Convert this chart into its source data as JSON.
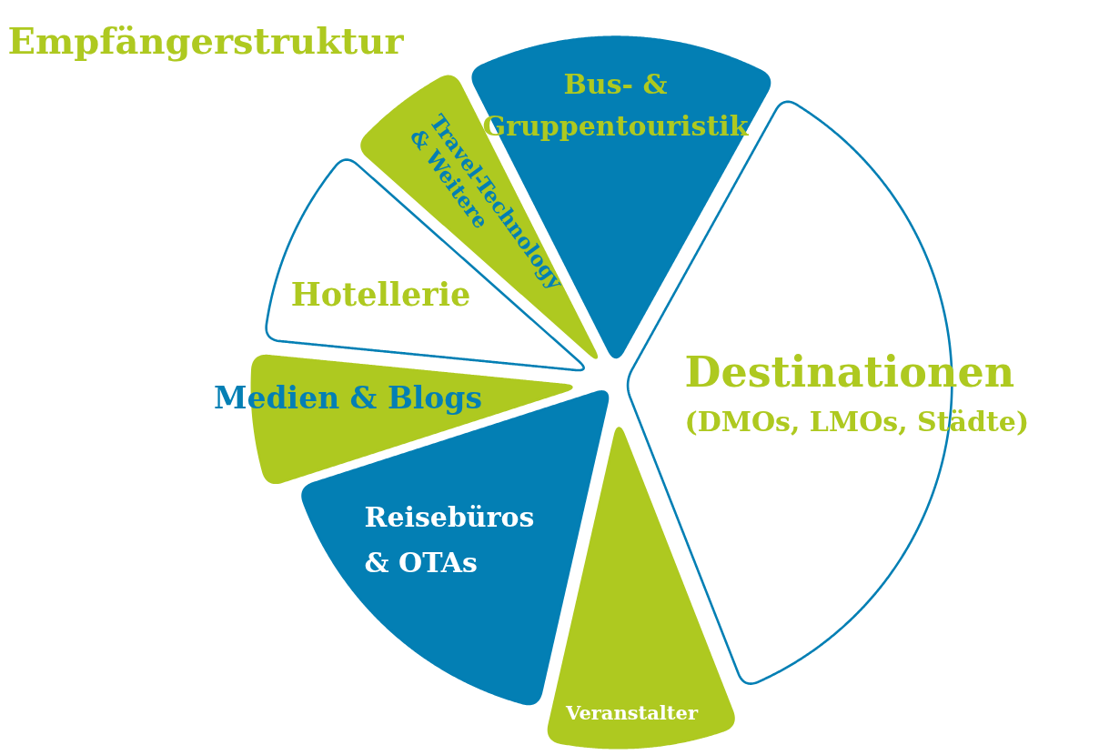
{
  "chart_data": {
    "type": "pie",
    "title": "Empfängerstruktur",
    "categories": [
      "Destinationen\n(DMOs, LMOs, Städte)",
      "Veranstalter",
      "Reisebüros\n& OTAs",
      "Medien & Blogs",
      "Hotellerie",
      "Travel-Technology\n& Weitere",
      "Bus- &\nGruppentouristik"
    ],
    "values": [
      36,
      9.5,
      16.5,
      6.5,
      10,
      6,
      15.5
    ],
    "colors": [
      "#ffffff",
      "#aec920",
      "#037fb4",
      "#aec920",
      "#ffffff",
      "#aec920",
      "#037fb4"
    ]
  }
}
